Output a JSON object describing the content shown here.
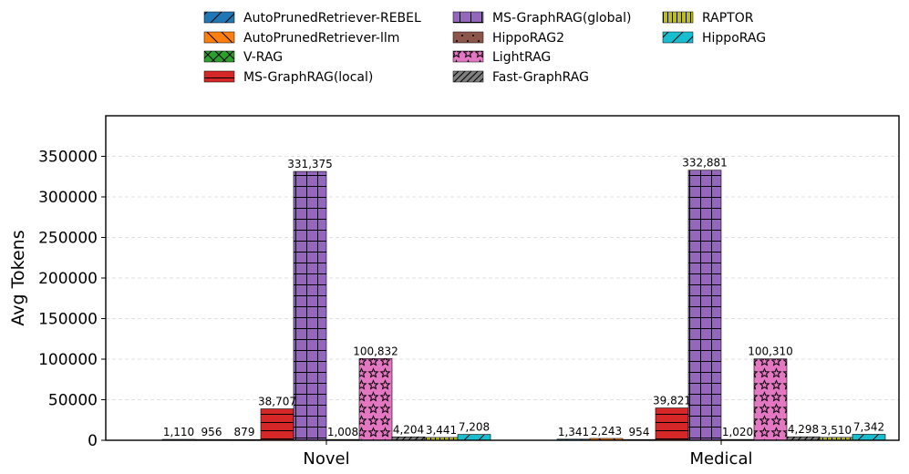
{
  "chart_data": {
    "type": "bar",
    "title": "",
    "xlabel": "",
    "ylabel": "Avg Tokens",
    "ylim": [
      0,
      400000
    ],
    "yticks": [
      0,
      50000,
      100000,
      150000,
      200000,
      250000,
      300000,
      350000
    ],
    "grid": "horizontal dashed",
    "legend_position": "top",
    "categories": [
      "Novel",
      "Medical"
    ],
    "series": [
      {
        "name": "AutoPrunedRetriever-REBEL",
        "color": "#1f77b4",
        "hatch": "diag",
        "values": [
          1110,
          1341
        ],
        "labels": [
          "1,110",
          "1,341"
        ]
      },
      {
        "name": "AutoPrunedRetriever-llm",
        "color": "#ff7f0e",
        "hatch": "backdiag",
        "values": [
          956,
          2243
        ],
        "labels": [
          "956",
          "2,243"
        ]
      },
      {
        "name": "V-RAG",
        "color": "#2ca02c",
        "hatch": "cross",
        "values": [
          879,
          954
        ],
        "labels": [
          "879",
          "954"
        ]
      },
      {
        "name": "MS-GraphRAG(local)",
        "color": "#d62728",
        "hatch": "horiz",
        "values": [
          38707,
          39821
        ],
        "labels": [
          "38,707",
          "39,821"
        ]
      },
      {
        "name": "MS-GraphRAG(global)",
        "color": "#9467bd",
        "hatch": "grid",
        "values": [
          331375,
          332881
        ],
        "labels": [
          "331,375",
          "332,881"
        ]
      },
      {
        "name": "HippoRAG2",
        "color": "#8c564b",
        "hatch": "dots",
        "values": [
          1008,
          1020
        ],
        "labels": [
          "1,008",
          "1,020"
        ]
      },
      {
        "name": "LightRAG",
        "color": "#e377c2",
        "hatch": "stars",
        "values": [
          100832,
          100310
        ],
        "labels": [
          "100,832",
          "100,310"
        ]
      },
      {
        "name": "Fast-GraphRAG",
        "color": "#7f7f7f",
        "hatch": "dense-diag",
        "values": [
          4204,
          4298
        ],
        "labels": [
          "4,204",
          "4,298"
        ]
      },
      {
        "name": "RAPTOR",
        "color": "#bcbd22",
        "hatch": "vert",
        "values": [
          3441,
          3510
        ],
        "labels": [
          "3,441",
          "3,510"
        ]
      },
      {
        "name": "HippoRAG",
        "color": "#17becf",
        "hatch": "diag",
        "values": [
          7208,
          7342
        ],
        "labels": [
          "7,208",
          "7,342"
        ]
      }
    ]
  }
}
